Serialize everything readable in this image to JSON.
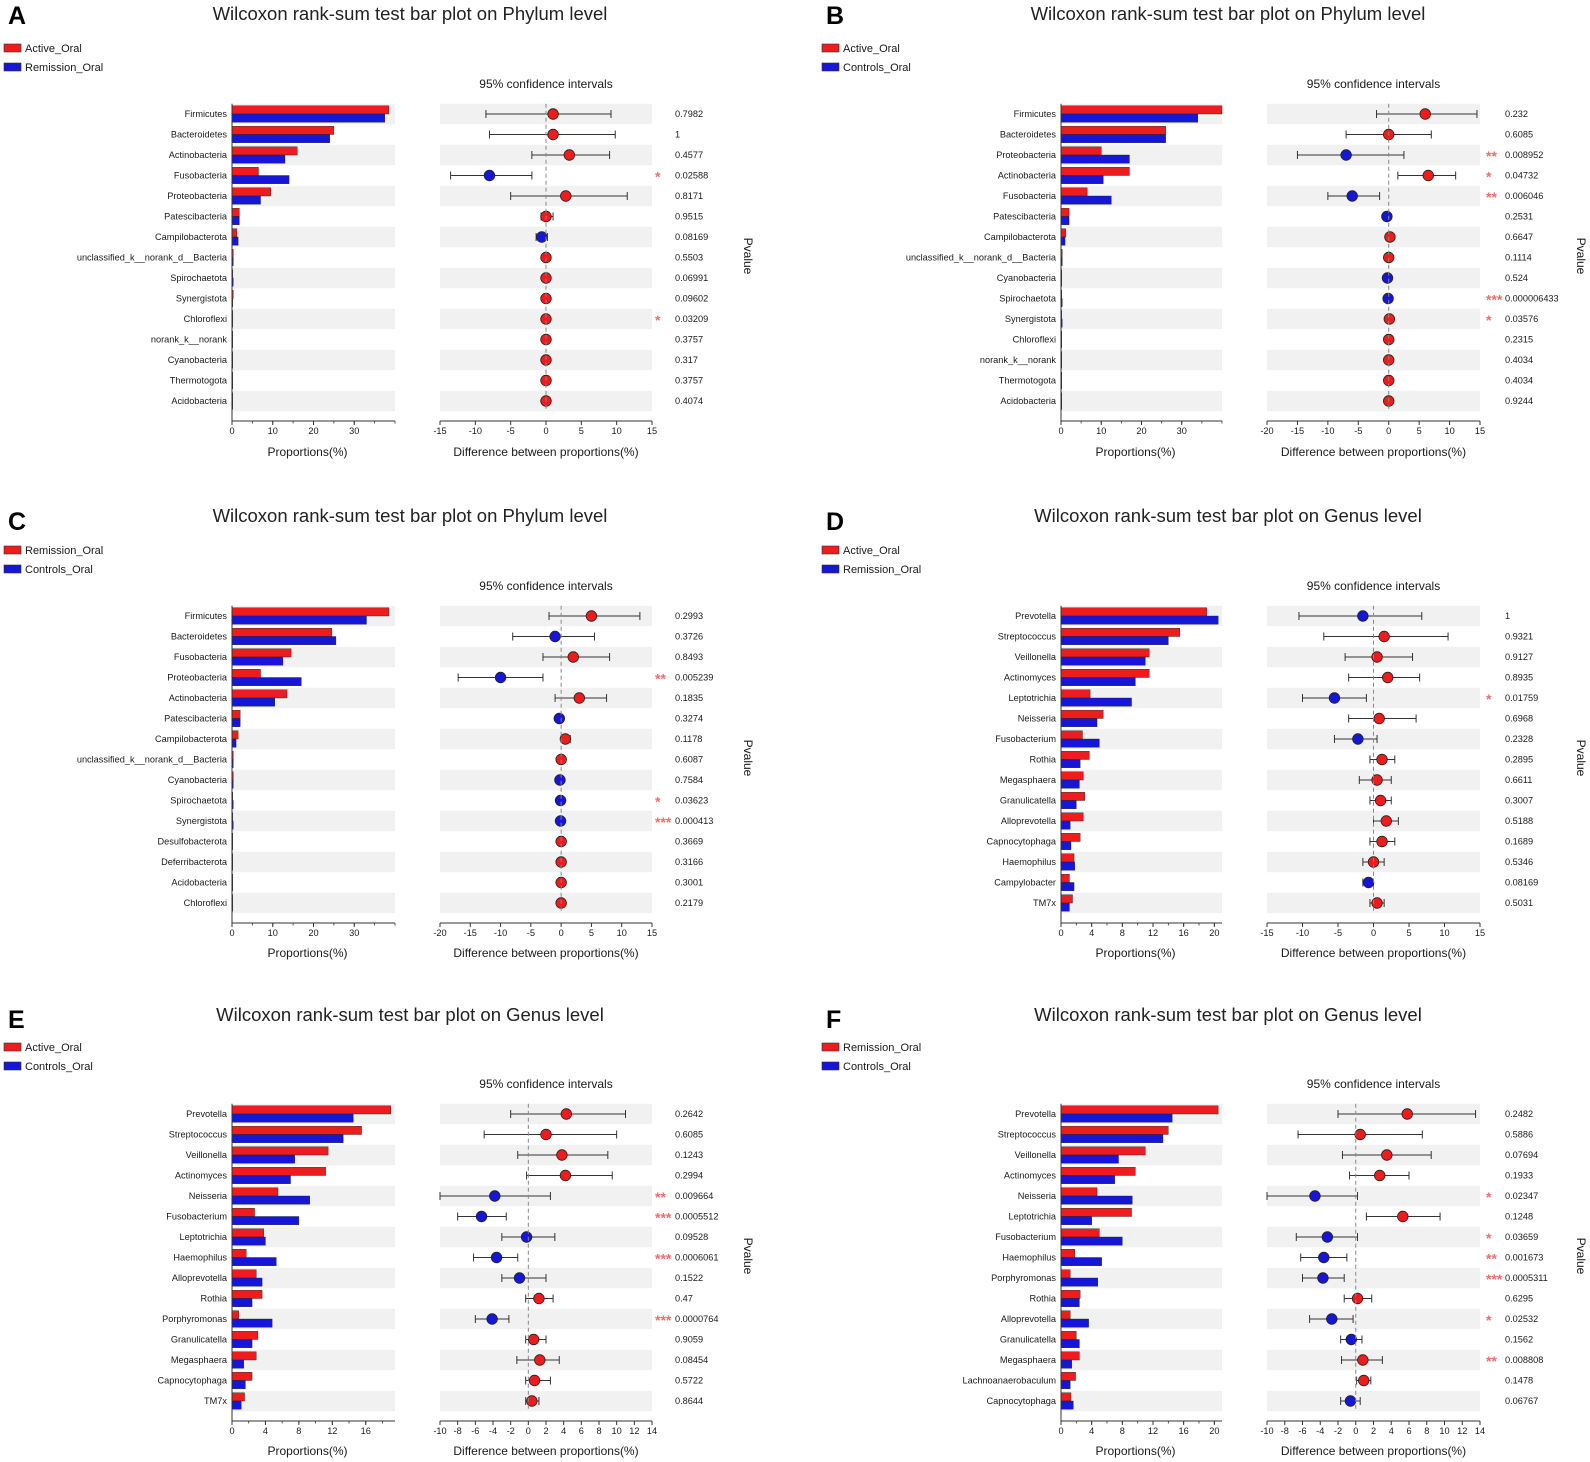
{
  "colors": {
    "groupA": "#ee1c1c",
    "groupB": "#1616d6",
    "stripe": "#f1f1f1",
    "star": "#f26d6d",
    "axis": "#333333"
  },
  "pvalue_label": "Pvalue",
  "chart_data": [
    {
      "panel": "A",
      "type": "bar",
      "title": "Wilcoxon rank-sum test bar plot on Phylum level",
      "legend": [
        "Active_Oral",
        "Remission_Oral"
      ],
      "categories": [
        "Firmicutes",
        "Bacteroidetes",
        "Actinobacteria",
        "Fusobacteria",
        "Proteobacteria",
        "Patescibacteria",
        "Campilobacterota",
        "unclassified_k__norank_d__Bacteria",
        "Spirochaetota",
        "Synergistota",
        "Chloroflexi",
        "norank_k__norank",
        "Cyanobacteria",
        "Thermotogota",
        "Acidobacteria"
      ],
      "series": [
        {
          "name": "Active_Oral",
          "values": [
            38.5,
            25,
            16,
            6.5,
            9.5,
            1.8,
            1.2,
            0.3,
            0.2,
            0.3,
            0.2,
            0.1,
            0.1,
            0.1,
            0.1
          ]
        },
        {
          "name": "Remission_Oral",
          "values": [
            37.5,
            24,
            13,
            14,
            7,
            1.8,
            1.5,
            0.3,
            0.3,
            0.2,
            0.2,
            0.1,
            0.1,
            0.1,
            0.1
          ]
        }
      ],
      "xlabel": "Proportions(%)",
      "xlim": [
        0,
        40
      ],
      "xticks": [
        0,
        10,
        20,
        30
      ],
      "xtick_labels": [
        "0",
        "10",
        "20",
        "30"
      ],
      "ci_title": "95% confidence intervals",
      "ci_xlabel": "Difference between proportions(%)",
      "ci_xlim": [
        -15,
        15
      ],
      "ci_xticks": [
        -15,
        -10,
        -5,
        0,
        5,
        10,
        15
      ],
      "ci_xtick_labels": [
        "-15",
        "-10",
        "-5",
        "0",
        "5",
        "10",
        "15"
      ],
      "diff": [
        1,
        1,
        3.3,
        -8,
        2.8,
        0,
        -0.6,
        0,
        0,
        0,
        0,
        0,
        0,
        0,
        0
      ],
      "ci_low": [
        -8.5,
        -8,
        -2,
        -13.5,
        -5,
        -0.7,
        -1.4,
        -0.3,
        -0.3,
        -0.3,
        -0.3,
        -0.3,
        -0.3,
        -0.3,
        -0.3
      ],
      "ci_high": [
        9.2,
        9.8,
        9,
        -2,
        11.5,
        1,
        0.2,
        0.3,
        0.3,
        0.3,
        0.3,
        0.3,
        0.3,
        0.3,
        0.3
      ],
      "pvalues": [
        "0.7982",
        "1",
        "0.4577",
        "0.02588",
        "0.8171",
        "0.9515",
        "0.08169",
        "0.5503",
        "0.06991",
        "0.09602",
        "0.03209",
        "0.3757",
        "0.317",
        "0.3757",
        "0.4074"
      ],
      "stars": [
        "",
        "",
        "",
        "*",
        "",
        "",
        "",
        "",
        "",
        "",
        "*",
        "",
        "",
        "",
        ""
      ]
    },
    {
      "panel": "B",
      "type": "bar",
      "title": "Wilcoxon rank-sum test bar plot on Phylum level",
      "legend": [
        "Active_Oral",
        "Controls_Oral"
      ],
      "categories": [
        "Firmicutes",
        "Bacteroidetes",
        "Proteobacteria",
        "Actinobacteria",
        "Fusobacteria",
        "Patescibacteria",
        "Campilobacterota",
        "unclassified_k__norank_d__Bacteria",
        "Cyanobacteria",
        "Spirochaetota",
        "Synergistota",
        "Chloroflexi",
        "norank_k__norank",
        "Thermotogota",
        "Acidobacteria"
      ],
      "series": [
        {
          "name": "Active_Oral",
          "values": [
            40,
            26,
            10,
            17,
            6.5,
            2,
            1.2,
            0.3,
            0.2,
            0.2,
            0.2,
            0.1,
            0.1,
            0.1,
            0.1
          ]
        },
        {
          "name": "Controls_Oral",
          "values": [
            34,
            26,
            17,
            10.5,
            12.5,
            2,
            1,
            0.3,
            0.2,
            0.3,
            0.3,
            0.1,
            0.1,
            0.1,
            0.1
          ]
        }
      ],
      "xlabel": "Proportions(%)",
      "xlim": [
        0,
        40
      ],
      "xticks": [
        0,
        10,
        20,
        30
      ],
      "xtick_labels": [
        "0",
        "10",
        "20",
        "30"
      ],
      "ci_title": "95% confidence intervals",
      "ci_xlabel": "Difference between proportions(%)",
      "ci_xlim": [
        -20,
        15
      ],
      "ci_xticks": [
        -20,
        -15,
        -10,
        -5,
        0,
        5,
        10,
        15
      ],
      "ci_xtick_labels": [
        "-20",
        "-15",
        "-10",
        "-5",
        "0",
        "5",
        "10",
        "15"
      ],
      "diff": [
        6,
        0,
        -7,
        6.5,
        -6,
        -0.3,
        0.2,
        0,
        -0.2,
        -0.1,
        0.1,
        0,
        0,
        0,
        0
      ],
      "ci_low": [
        -2,
        -7,
        -15,
        1.5,
        -10,
        -0.8,
        -0.4,
        -0.3,
        -0.5,
        -0.5,
        -0.3,
        -0.3,
        -0.3,
        -0.3,
        -0.3
      ],
      "ci_high": [
        14.5,
        7,
        2.5,
        11,
        -1.5,
        0.3,
        0.6,
        0.3,
        0.2,
        0.3,
        0.4,
        0.3,
        0.3,
        0.3,
        0.3
      ],
      "pvalues": [
        "0.232",
        "0.6085",
        "0.008952",
        "0.04732",
        "0.006046",
        "0.2531",
        "0.6647",
        "0.1114",
        "0.524",
        "0.000006433",
        "0.03576",
        "0.2315",
        "0.4034",
        "0.4034",
        "0.9244"
      ],
      "stars": [
        "",
        "",
        "**",
        "*",
        "**",
        "",
        "",
        "",
        "",
        "***",
        "*",
        "",
        "",
        "",
        ""
      ]
    },
    {
      "panel": "C",
      "type": "bar",
      "title": "Wilcoxon rank-sum test bar plot on Phylum level",
      "legend": [
        "Remission_Oral",
        "Controls_Oral"
      ],
      "categories": [
        "Firmicutes",
        "Bacteroidetes",
        "Fusobacteria",
        "Proteobacteria",
        "Actinobacteria",
        "Patescibacteria",
        "Campilobacterota",
        "unclassified_k__norank_d__Bacteria",
        "Cyanobacteria",
        "Spirochaetota",
        "Synergistota",
        "Desulfobacterota",
        "Deferribacterota",
        "Acidobacteria",
        "Chloroflexi"
      ],
      "series": [
        {
          "name": "Remission_Oral",
          "values": [
            38.5,
            24.5,
            14.5,
            7,
            13.5,
            2,
            1.5,
            0.3,
            0.3,
            0.2,
            0.2,
            0.1,
            0.1,
            0.1,
            0.1
          ]
        },
        {
          "name": "Controls_Oral",
          "values": [
            33,
            25.5,
            12.5,
            17,
            10.5,
            2,
            1,
            0.3,
            0.3,
            0.3,
            0.3,
            0.1,
            0.1,
            0.1,
            0.1
          ]
        }
      ],
      "xlabel": "Proportions(%)",
      "xlim": [
        0,
        40
      ],
      "xticks": [
        0,
        10,
        20,
        30
      ],
      "xtick_labels": [
        "0",
        "10",
        "20",
        "30"
      ],
      "ci_title": "95% confidence intervals",
      "ci_xlabel": "Difference between proportions(%)",
      "ci_xlim": [
        -20,
        15
      ],
      "ci_xticks": [
        -20,
        -15,
        -10,
        -5,
        0,
        5,
        10,
        15
      ],
      "ci_xtick_labels": [
        "-20",
        "-15",
        "-10",
        "-5",
        "0",
        "5",
        "10",
        "15"
      ],
      "diff": [
        5,
        -1,
        2,
        -10,
        3,
        -0.3,
        0.7,
        0,
        -0.2,
        -0.1,
        -0.1,
        0,
        0,
        0,
        0
      ],
      "ci_low": [
        -2,
        -8,
        -3,
        -17,
        -1,
        -0.9,
        0,
        -0.3,
        -0.5,
        -0.4,
        -0.4,
        -0.3,
        -0.3,
        -0.3,
        -0.3
      ],
      "ci_high": [
        13,
        5.5,
        8,
        -3,
        7.5,
        0.3,
        1.5,
        0.3,
        0.2,
        0.2,
        0.2,
        0.3,
        0.3,
        0.3,
        0.3
      ],
      "pvalues": [
        "0.2993",
        "0.3726",
        "0.8493",
        "0.005239",
        "0.1835",
        "0.3274",
        "0.1178",
        "0.6087",
        "0.7584",
        "0.03623",
        "0.000413",
        "0.3669",
        "0.3166",
        "0.3001",
        "0.2179"
      ],
      "stars": [
        "",
        "",
        "",
        "**",
        "",
        "",
        "",
        "",
        "",
        "*",
        "***",
        "",
        "",
        "",
        ""
      ]
    },
    {
      "panel": "D",
      "type": "bar",
      "title": "Wilcoxon rank-sum test bar plot on Genus level",
      "legend": [
        "Active_Oral",
        "Remission_Oral"
      ],
      "categories": [
        "Prevotella",
        "Streptococcus",
        "Veillonella",
        "Actinomyces",
        "Leptotrichia",
        "Neisseria",
        "Fusobacterium",
        "Rothia",
        "Megasphaera",
        "Granulicatella",
        "Alloprevotella",
        "Capnocytophaga",
        "Haemophilus",
        "Campylobacter",
        "TM7x"
      ],
      "series": [
        {
          "name": "Active_Oral",
          "values": [
            19,
            15.5,
            11.5,
            11.5,
            3.8,
            5.5,
            2.8,
            3.7,
            2.9,
            3.1,
            2.9,
            2.5,
            1.7,
            1.1,
            1.5
          ]
        },
        {
          "name": "Remission_Oral",
          "values": [
            20.5,
            14,
            11,
            9.7,
            9.2,
            4.7,
            5,
            2.5,
            2.4,
            2,
            1.2,
            1.3,
            1.8,
            1.7,
            1.1
          ]
        }
      ],
      "xlabel": "Proportions(%)",
      "xlim": [
        0,
        21
      ],
      "xticks": [
        0,
        4,
        8,
        12,
        16,
        20
      ],
      "xtick_labels": [
        "0",
        "4",
        "8",
        "12",
        "16",
        "20"
      ],
      "ci_title": "95% confidence intervals",
      "ci_xlabel": "Difference between proportions(%)",
      "ci_xlim": [
        -15,
        15
      ],
      "ci_xticks": [
        -15,
        -10,
        -5,
        0,
        5,
        10,
        15
      ],
      "ci_xtick_labels": [
        "-15",
        "-10",
        "-5",
        "0",
        "5",
        "10",
        "15"
      ],
      "diff": [
        -1.5,
        1.5,
        0.5,
        2,
        -5.5,
        0.8,
        -2.2,
        1.2,
        0.5,
        1,
        1.8,
        1.2,
        0,
        -0.7,
        0.5
      ],
      "ci_low": [
        -10.5,
        -7,
        -4,
        -3.5,
        -10,
        -3.5,
        -5.5,
        -0.5,
        -2,
        -0.5,
        0,
        -0.5,
        -1.5,
        -1.5,
        -0.5
      ],
      "ci_high": [
        6.8,
        10.5,
        5.5,
        6.5,
        -1,
        6,
        0.5,
        3,
        2.5,
        2.5,
        3.5,
        3,
        1.5,
        0,
        1.5
      ],
      "pvalues": [
        "1",
        "0.9321",
        "0.9127",
        "0.8935",
        "0.01759",
        "0.6968",
        "0.2328",
        "0.2895",
        "0.6611",
        "0.3007",
        "0.5188",
        "0.1689",
        "0.5346",
        "0.08169",
        "0.5031"
      ],
      "stars": [
        "",
        "",
        "",
        "",
        "*",
        "",
        "",
        "",
        "",
        "",
        "",
        "",
        "",
        "",
        ""
      ]
    },
    {
      "panel": "E",
      "type": "bar",
      "title": "Wilcoxon rank-sum test bar plot on Genus level",
      "legend": [
        "Active_Oral",
        "Controls_Oral"
      ],
      "categories": [
        "Prevotella",
        "Streptococcus",
        "Veillonella",
        "Actinomyces",
        "Neisseria",
        "Fusobacterium",
        "Leptotrichia",
        "Haemophilus",
        "Alloprevotella",
        "Rothia",
        "Porphyromonas",
        "Granulicatella",
        "Megasphaera",
        "Capnocytophaga",
        "TM7x"
      ],
      "series": [
        {
          "name": "Active_Oral",
          "values": [
            19,
            15.5,
            11.5,
            11.2,
            5.5,
            2.7,
            3.8,
            1.7,
            2.9,
            3.6,
            0.8,
            3.1,
            2.9,
            2.4,
            1.5
          ]
        },
        {
          "name": "Controls_Oral",
          "values": [
            14.5,
            13.3,
            7.5,
            7,
            9.3,
            8,
            4,
            5.3,
            3.6,
            2.4,
            4.8,
            2.4,
            1.4,
            1.6,
            1.1
          ]
        }
      ],
      "xlabel": "Proportions(%)",
      "xlim": [
        0,
        19.5
      ],
      "xticks": [
        0,
        4,
        8,
        12,
        16
      ],
      "xtick_labels": [
        "0",
        "4",
        "8",
        "12",
        "16"
      ],
      "ci_title": "95% confidence intervals",
      "ci_xlabel": "Difference between proportions(%)",
      "ci_xlim": [
        -10,
        14
      ],
      "ci_xticks": [
        -10,
        -8,
        -6,
        -4,
        -2,
        0,
        2,
        4,
        6,
        8,
        10,
        12,
        14
      ],
      "ci_xtick_labels": [
        "-10",
        "-8",
        "-6",
        "-4",
        "-2",
        "0",
        "2",
        "4",
        "6",
        "8",
        "10",
        "12",
        "14"
      ],
      "diff": [
        4.3,
        2,
        3.8,
        4.2,
        -3.8,
        -5.3,
        -0.2,
        -3.6,
        -1,
        1.2,
        -4.1,
        0.6,
        1.3,
        0.7,
        0.4
      ],
      "ci_low": [
        -2,
        -5,
        -1.2,
        -0.2,
        -10,
        -8,
        -3,
        -6.2,
        -3,
        -0.3,
        -6,
        -0.3,
        -1.3,
        -0.3,
        -0.3
      ],
      "ci_high": [
        11,
        10,
        9,
        9.5,
        2.5,
        -2.5,
        3,
        -1.2,
        2,
        2.8,
        -2.2,
        2,
        3.5,
        2.5,
        1.2
      ],
      "pvalues": [
        "0.2642",
        "0.6085",
        "0.1243",
        "0.2994",
        "0.009664",
        "0.0005512",
        "0.09528",
        "0.0006061",
        "0.1522",
        "0.47",
        "0.0000764",
        "0.9059",
        "0.08454",
        "0.5722",
        "0.8644"
      ],
      "stars": [
        "",
        "",
        "",
        "",
        "**",
        "***",
        "",
        "***",
        "",
        "",
        "***",
        "",
        "",
        "",
        ""
      ]
    },
    {
      "panel": "F",
      "type": "bar",
      "title": "Wilcoxon rank-sum test bar plot on Genus level",
      "legend": [
        "Remission_Oral",
        "Controls_Oral"
      ],
      "categories": [
        "Prevotella",
        "Streptococcus",
        "Veillonella",
        "Actinomyces",
        "Neisseria",
        "Leptotrichia",
        "Fusobacterium",
        "Haemophilus",
        "Porphyromonas",
        "Rothia",
        "Alloprevotella",
        "Granulicatella",
        "Megasphaera",
        "Lachnoanaerobaculum",
        "Capnocytophaga"
      ],
      "series": [
        {
          "name": "Remission_Oral",
          "values": [
            20.5,
            14,
            11,
            9.7,
            4.7,
            9.2,
            5,
            1.8,
            1.2,
            2.5,
            1.2,
            2,
            2.4,
            1.9,
            1.3
          ]
        },
        {
          "name": "Controls_Oral",
          "values": [
            14.5,
            13.3,
            7.5,
            7,
            9.3,
            4,
            8,
            5.3,
            4.8,
            2.4,
            3.6,
            2.4,
            1.4,
            1.2,
            1.6
          ]
        }
      ],
      "xlabel": "Proportions(%)",
      "xlim": [
        0,
        21
      ],
      "xticks": [
        0,
        4,
        8,
        12,
        16,
        20
      ],
      "xtick_labels": [
        "0",
        "4",
        "8",
        "12",
        "16",
        "20"
      ],
      "ci_title": "95% confidence intervals",
      "ci_xlabel": "Difference between proportions(%)",
      "ci_xlim": [
        -10,
        14
      ],
      "ci_xticks": [
        -10,
        -8,
        -6,
        -4,
        -2,
        0,
        2,
        4,
        6,
        8,
        10,
        12,
        14
      ],
      "ci_xtick_labels": [
        "-10",
        "-8",
        "-6",
        "-4",
        "-2",
        "0",
        "2",
        "4",
        "6",
        "8",
        "10",
        "12",
        "14"
      ],
      "diff": [
        5.8,
        0.5,
        3.5,
        2.7,
        -4.6,
        5.3,
        -3.2,
        -3.6,
        -3.7,
        0.2,
        -2.7,
        -0.5,
        0.8,
        0.9,
        -0.6
      ],
      "ci_low": [
        -2,
        -6.5,
        -1.5,
        -0.7,
        -10,
        1.2,
        -6.7,
        -6.2,
        -6,
        -1.3,
        -5.2,
        -1.7,
        -1.6,
        0.1,
        -1.7
      ],
      "ci_high": [
        13.5,
        7.5,
        8.5,
        6,
        0.2,
        9.5,
        0.2,
        -1,
        -1.3,
        1.8,
        -0.3,
        0.7,
        3,
        1.7,
        0.5
      ],
      "pvalues": [
        "0.2482",
        "0.5886",
        "0.07694",
        "0.1933",
        "0.02347",
        "0.1248",
        "0.03659",
        "0.001673",
        "0.0005311",
        "0.6295",
        "0.02532",
        "0.1562",
        "0.008808",
        "0.1478",
        "0.06767"
      ],
      "stars": [
        "",
        "",
        "",
        "",
        "*",
        "",
        "*",
        "**",
        "***",
        "",
        "*",
        "",
        "**",
        "",
        ""
      ]
    }
  ]
}
